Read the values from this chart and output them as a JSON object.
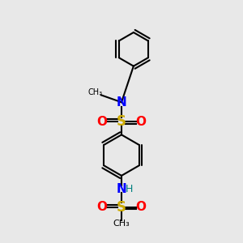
{
  "background_color": "#e8e8e8",
  "atom_colors": {
    "C": "#000000",
    "N": "#0000ff",
    "O": "#ff0000",
    "S": "#ccaa00",
    "H": "#008080"
  },
  "bond_color": "#000000",
  "figsize": [
    3.0,
    3.0
  ],
  "dpi": 100
}
